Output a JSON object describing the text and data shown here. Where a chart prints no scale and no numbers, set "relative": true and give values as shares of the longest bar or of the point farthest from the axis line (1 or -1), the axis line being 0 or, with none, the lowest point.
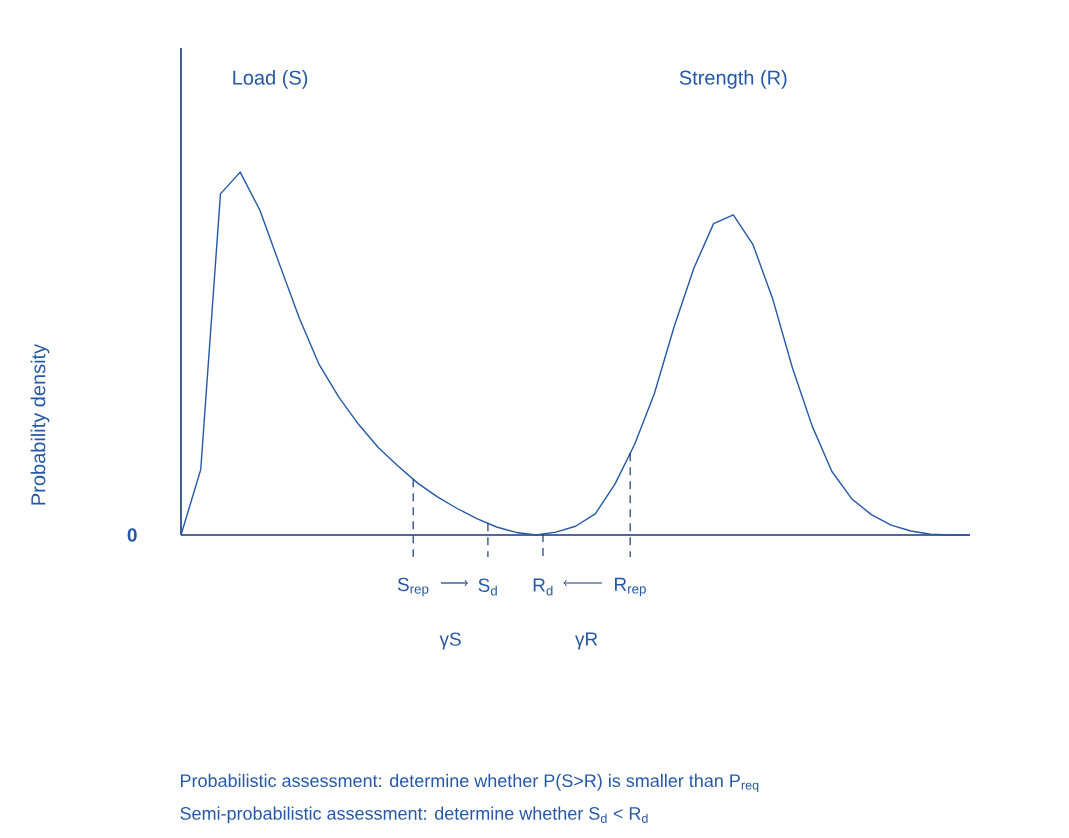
{
  "chart_data": {
    "type": "line",
    "relative": true,
    "marker": "none",
    "categories": [
      null,
      null,
      null,
      null,
      null,
      null,
      null,
      null,
      null,
      null,
      null,
      null,
      null,
      null,
      null,
      null,
      null,
      null,
      null,
      null,
      null,
      null,
      null,
      null,
      null,
      null,
      null,
      null,
      null,
      null,
      null,
      null,
      null,
      null,
      null,
      null,
      null,
      null,
      null,
      null,
      null
    ],
    "series": [
      {
        "color": "#2558a8",
        "values": [
          0,
          0.18,
          0.94,
          1,
          0.895,
          0.745,
          0.597,
          0.47,
          0.38,
          0.305,
          0.241,
          0.19,
          0.143,
          0.105,
          0.073,
          0.045,
          0.022,
          0.007,
          0,
          0.008,
          0.024,
          0.058,
          0.14,
          0.25,
          0.39,
          0.574,
          0.735,
          0.858,
          0.882,
          0.8,
          0.65,
          0.46,
          0.3,
          0.175,
          0.1,
          0.056,
          0.027,
          0.011,
          0.002,
          0,
          0
        ]
      }
    ],
    "annotations": [
      "0",
      "Probability density",
      "Load (S)",
      "Strength (R)",
      "S$_{rep}$",
      "S$_{d}$",
      "R$_{d}$",
      "R$_{rep}$",
      "γS",
      "γR",
      "Probabilistic assessment: determine whether P(S>R) is smaller than P$_{req}$",
      "Semi-probabilistic assessment: determine whether S$_{d}$ < R$_{d}$"
    ]
  }
}
